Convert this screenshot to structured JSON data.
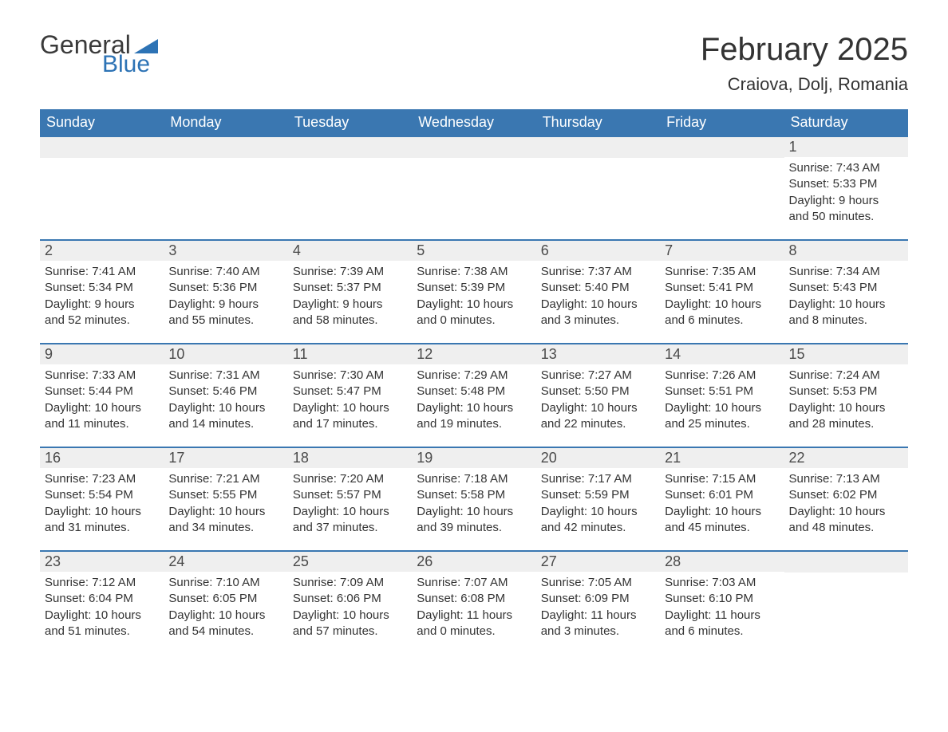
{
  "logo": {
    "text_general": "General",
    "text_blue": "Blue",
    "color_dark": "#3a3a3a",
    "color_blue": "#2d73b5"
  },
  "header": {
    "month_title": "February 2025",
    "location": "Craiova, Dolj, Romania"
  },
  "colors": {
    "header_bg": "#3a77b1",
    "header_text": "#ffffff",
    "row_border": "#3a77b1",
    "daynum_bg": "#efefef",
    "body_text": "#333333"
  },
  "calendar": {
    "weekdays": [
      "Sunday",
      "Monday",
      "Tuesday",
      "Wednesday",
      "Thursday",
      "Friday",
      "Saturday"
    ],
    "weeks": [
      [
        null,
        null,
        null,
        null,
        null,
        null,
        {
          "day": "1",
          "sunrise": "Sunrise: 7:43 AM",
          "sunset": "Sunset: 5:33 PM",
          "daylight1": "Daylight: 9 hours",
          "daylight2": "and 50 minutes."
        }
      ],
      [
        {
          "day": "2",
          "sunrise": "Sunrise: 7:41 AM",
          "sunset": "Sunset: 5:34 PM",
          "daylight1": "Daylight: 9 hours",
          "daylight2": "and 52 minutes."
        },
        {
          "day": "3",
          "sunrise": "Sunrise: 7:40 AM",
          "sunset": "Sunset: 5:36 PM",
          "daylight1": "Daylight: 9 hours",
          "daylight2": "and 55 minutes."
        },
        {
          "day": "4",
          "sunrise": "Sunrise: 7:39 AM",
          "sunset": "Sunset: 5:37 PM",
          "daylight1": "Daylight: 9 hours",
          "daylight2": "and 58 minutes."
        },
        {
          "day": "5",
          "sunrise": "Sunrise: 7:38 AM",
          "sunset": "Sunset: 5:39 PM",
          "daylight1": "Daylight: 10 hours",
          "daylight2": "and 0 minutes."
        },
        {
          "day": "6",
          "sunrise": "Sunrise: 7:37 AM",
          "sunset": "Sunset: 5:40 PM",
          "daylight1": "Daylight: 10 hours",
          "daylight2": "and 3 minutes."
        },
        {
          "day": "7",
          "sunrise": "Sunrise: 7:35 AM",
          "sunset": "Sunset: 5:41 PM",
          "daylight1": "Daylight: 10 hours",
          "daylight2": "and 6 minutes."
        },
        {
          "day": "8",
          "sunrise": "Sunrise: 7:34 AM",
          "sunset": "Sunset: 5:43 PM",
          "daylight1": "Daylight: 10 hours",
          "daylight2": "and 8 minutes."
        }
      ],
      [
        {
          "day": "9",
          "sunrise": "Sunrise: 7:33 AM",
          "sunset": "Sunset: 5:44 PM",
          "daylight1": "Daylight: 10 hours",
          "daylight2": "and 11 minutes."
        },
        {
          "day": "10",
          "sunrise": "Sunrise: 7:31 AM",
          "sunset": "Sunset: 5:46 PM",
          "daylight1": "Daylight: 10 hours",
          "daylight2": "and 14 minutes."
        },
        {
          "day": "11",
          "sunrise": "Sunrise: 7:30 AM",
          "sunset": "Sunset: 5:47 PM",
          "daylight1": "Daylight: 10 hours",
          "daylight2": "and 17 minutes."
        },
        {
          "day": "12",
          "sunrise": "Sunrise: 7:29 AM",
          "sunset": "Sunset: 5:48 PM",
          "daylight1": "Daylight: 10 hours",
          "daylight2": "and 19 minutes."
        },
        {
          "day": "13",
          "sunrise": "Sunrise: 7:27 AM",
          "sunset": "Sunset: 5:50 PM",
          "daylight1": "Daylight: 10 hours",
          "daylight2": "and 22 minutes."
        },
        {
          "day": "14",
          "sunrise": "Sunrise: 7:26 AM",
          "sunset": "Sunset: 5:51 PM",
          "daylight1": "Daylight: 10 hours",
          "daylight2": "and 25 minutes."
        },
        {
          "day": "15",
          "sunrise": "Sunrise: 7:24 AM",
          "sunset": "Sunset: 5:53 PM",
          "daylight1": "Daylight: 10 hours",
          "daylight2": "and 28 minutes."
        }
      ],
      [
        {
          "day": "16",
          "sunrise": "Sunrise: 7:23 AM",
          "sunset": "Sunset: 5:54 PM",
          "daylight1": "Daylight: 10 hours",
          "daylight2": "and 31 minutes."
        },
        {
          "day": "17",
          "sunrise": "Sunrise: 7:21 AM",
          "sunset": "Sunset: 5:55 PM",
          "daylight1": "Daylight: 10 hours",
          "daylight2": "and 34 minutes."
        },
        {
          "day": "18",
          "sunrise": "Sunrise: 7:20 AM",
          "sunset": "Sunset: 5:57 PM",
          "daylight1": "Daylight: 10 hours",
          "daylight2": "and 37 minutes."
        },
        {
          "day": "19",
          "sunrise": "Sunrise: 7:18 AM",
          "sunset": "Sunset: 5:58 PM",
          "daylight1": "Daylight: 10 hours",
          "daylight2": "and 39 minutes."
        },
        {
          "day": "20",
          "sunrise": "Sunrise: 7:17 AM",
          "sunset": "Sunset: 5:59 PM",
          "daylight1": "Daylight: 10 hours",
          "daylight2": "and 42 minutes."
        },
        {
          "day": "21",
          "sunrise": "Sunrise: 7:15 AM",
          "sunset": "Sunset: 6:01 PM",
          "daylight1": "Daylight: 10 hours",
          "daylight2": "and 45 minutes."
        },
        {
          "day": "22",
          "sunrise": "Sunrise: 7:13 AM",
          "sunset": "Sunset: 6:02 PM",
          "daylight1": "Daylight: 10 hours",
          "daylight2": "and 48 minutes."
        }
      ],
      [
        {
          "day": "23",
          "sunrise": "Sunrise: 7:12 AM",
          "sunset": "Sunset: 6:04 PM",
          "daylight1": "Daylight: 10 hours",
          "daylight2": "and 51 minutes."
        },
        {
          "day": "24",
          "sunrise": "Sunrise: 7:10 AM",
          "sunset": "Sunset: 6:05 PM",
          "daylight1": "Daylight: 10 hours",
          "daylight2": "and 54 minutes."
        },
        {
          "day": "25",
          "sunrise": "Sunrise: 7:09 AM",
          "sunset": "Sunset: 6:06 PM",
          "daylight1": "Daylight: 10 hours",
          "daylight2": "and 57 minutes."
        },
        {
          "day": "26",
          "sunrise": "Sunrise: 7:07 AM",
          "sunset": "Sunset: 6:08 PM",
          "daylight1": "Daylight: 11 hours",
          "daylight2": "and 0 minutes."
        },
        {
          "day": "27",
          "sunrise": "Sunrise: 7:05 AM",
          "sunset": "Sunset: 6:09 PM",
          "daylight1": "Daylight: 11 hours",
          "daylight2": "and 3 minutes."
        },
        {
          "day": "28",
          "sunrise": "Sunrise: 7:03 AM",
          "sunset": "Sunset: 6:10 PM",
          "daylight1": "Daylight: 11 hours",
          "daylight2": "and 6 minutes."
        },
        null
      ]
    ]
  }
}
